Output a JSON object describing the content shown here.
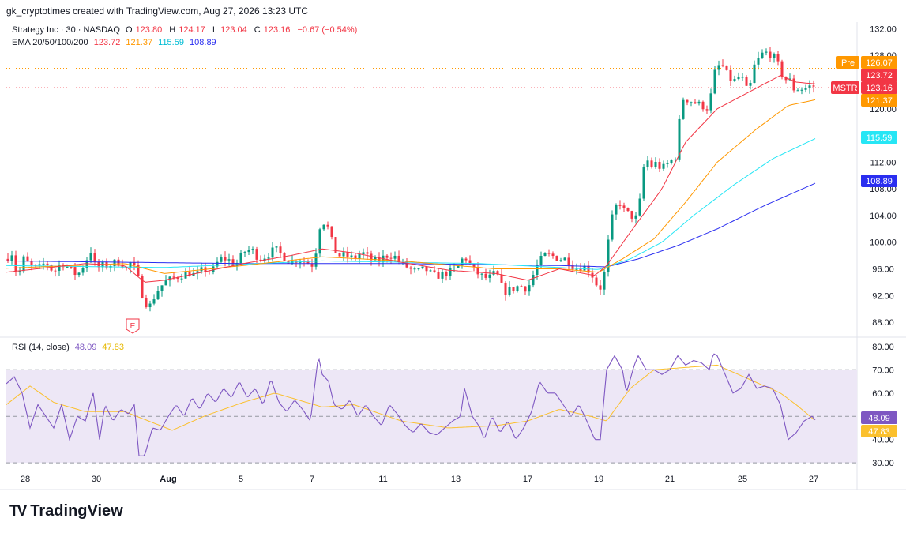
{
  "header": {
    "published_by": "gk_cryptotimes created with TradingView.com, Aug 27, 2026 13:23 UTC"
  },
  "legend_price": {
    "symbol": "Strategy Inc · 30 · NASDAQ",
    "o_label": "O",
    "o_value": "123.80",
    "h_label": "H",
    "h_value": "124.17",
    "l_label": "L",
    "l_value": "123.04",
    "c_label": "C",
    "c_value": "123.16",
    "change": "−0.67 (−0.54%)"
  },
  "legend_ema": {
    "label": "EMA 20/50/100/200",
    "values": [
      "123.72",
      "121.37",
      "115.59",
      "108.89"
    ]
  },
  "legend_rsi": {
    "label": "RSI (14, close)",
    "values": [
      "48.09",
      "47.83"
    ]
  },
  "earnings_marker": "E",
  "brand": {
    "name": "TradingView",
    "logo_glyph": "TV"
  },
  "colors": {
    "up": "#089981",
    "down": "#f23645",
    "ema20": "#f23645",
    "ema50": "#ff9800",
    "ema100": "#26e6f5",
    "ema200": "#2a2ef0",
    "rsi": "#7e57c2",
    "rsi_ma": "#fbc02d",
    "rsi_band": "#ede7f6",
    "pre": "#ff9800",
    "mstr": "#f23645"
  },
  "chart_data": [
    {
      "type": "candlestick",
      "title": "Strategy Inc · 30 · NASDAQ",
      "x_ticks": [
        "28",
        "30",
        "Aug",
        "5",
        "7",
        "11",
        "13",
        "17",
        "19",
        "21",
        "25",
        "27"
      ],
      "y_ticks": [
        "132.00",
        "128.00",
        "120.00",
        "116.00",
        "112.00",
        "108.00",
        "104.00",
        "100.00",
        "96.00",
        "92.00",
        "88.00"
      ],
      "ylim": [
        86,
        133
      ],
      "anchors": [
        [
          0,
          97.5
        ],
        [
          8,
          98.5
        ],
        [
          14,
          94.5
        ],
        [
          22,
          97.5
        ],
        [
          30,
          96.5
        ],
        [
          40,
          96
        ],
        [
          50,
          97
        ],
        [
          60,
          95.5
        ],
        [
          70,
          97
        ],
        [
          80,
          96
        ],
        [
          90,
          95
        ],
        [
          100,
          97
        ],
        [
          108,
          99
        ],
        [
          113,
          96
        ],
        [
          122,
          96.5
        ],
        [
          130,
          96.5
        ],
        [
          138,
          97
        ],
        [
          145,
          97
        ],
        [
          152,
          96
        ],
        [
          158,
          97
        ],
        [
          165,
          95.5
        ],
        [
          170,
          93
        ],
        [
          175,
          91
        ],
        [
          182,
          90.5
        ],
        [
          190,
          92.5
        ],
        [
          200,
          94
        ],
        [
          210,
          94.5
        ],
        [
          220,
          95
        ],
        [
          230,
          95.5
        ],
        [
          240,
          95
        ],
        [
          250,
          96
        ],
        [
          260,
          95.5
        ],
        [
          270,
          97.5
        ],
        [
          280,
          97.5
        ],
        [
          290,
          96.5
        ],
        [
          300,
          98.5
        ],
        [
          310,
          99
        ],
        [
          320,
          97.5
        ],
        [
          330,
          98
        ],
        [
          340,
          99
        ],
        [
          350,
          98
        ],
        [
          360,
          97
        ],
        [
          370,
          97.5
        ],
        [
          380,
          97
        ],
        [
          390,
          96.5
        ],
        [
          395,
          102
        ],
        [
          400,
          103
        ],
        [
          405,
          103
        ],
        [
          410,
          101
        ],
        [
          415,
          99
        ],
        [
          420,
          98
        ],
        [
          430,
          98
        ],
        [
          440,
          97.5
        ],
        [
          450,
          98.5
        ],
        [
          460,
          97.5
        ],
        [
          470,
          97
        ],
        [
          480,
          98
        ],
        [
          490,
          98
        ],
        [
          500,
          97
        ],
        [
          510,
          96
        ],
        [
          520,
          95.5
        ],
        [
          530,
          96
        ],
        [
          540,
          95
        ],
        [
          550,
          95
        ],
        [
          560,
          95.5
        ],
        [
          570,
          96
        ],
        [
          580,
          98
        ],
        [
          590,
          96
        ],
        [
          600,
          95
        ],
        [
          610,
          94.5
        ],
        [
          620,
          95.5
        ],
        [
          630,
          92.5
        ],
        [
          640,
          93
        ],
        [
          650,
          93.5
        ],
        [
          660,
          93
        ],
        [
          670,
          96
        ],
        [
          680,
          98
        ],
        [
          690,
          98
        ],
        [
          700,
          97.5
        ],
        [
          710,
          97.5
        ],
        [
          720,
          96
        ],
        [
          730,
          96.5
        ],
        [
          740,
          95.5
        ],
        [
          750,
          93
        ],
        [
          755,
          93.5
        ],
        [
          760,
          98
        ],
        [
          765,
          103
        ],
        [
          770,
          104.5
        ],
        [
          775,
          106.5
        ],
        [
          780,
          105
        ],
        [
          790,
          104
        ],
        [
          800,
          103.5
        ],
        [
          805,
          110
        ],
        [
          810,
          113
        ],
        [
          815,
          111
        ],
        [
          820,
          112
        ],
        [
          830,
          111
        ],
        [
          840,
          112
        ],
        [
          848,
          113
        ],
        [
          852,
          118
        ],
        [
          856,
          121.5
        ],
        [
          860,
          121.5
        ],
        [
          870,
          121
        ],
        [
          880,
          120.5
        ],
        [
          890,
          120
        ],
        [
          895,
          125
        ],
        [
          900,
          126
        ],
        [
          905,
          127
        ],
        [
          910,
          125.5
        ],
        [
          920,
          124
        ],
        [
          930,
          125
        ],
        [
          940,
          122
        ],
        [
          945,
          126
        ],
        [
          950,
          127
        ],
        [
          955,
          128
        ],
        [
          960,
          128.5
        ],
        [
          970,
          128
        ],
        [
          980,
          126
        ],
        [
          985,
          124
        ],
        [
          990,
          125
        ],
        [
          995,
          123
        ],
        [
          1000,
          123
        ],
        [
          1010,
          123
        ],
        [
          1020,
          123.5
        ],
        [
          1025,
          123.2
        ]
      ],
      "ema_anchors": {
        "ema20": [
          [
            0,
            95.5
          ],
          [
            100,
            96.8
          ],
          [
            150,
            96.5
          ],
          [
            175,
            94
          ],
          [
            200,
            94.3
          ],
          [
            300,
            96.8
          ],
          [
            360,
            98
          ],
          [
            400,
            99
          ],
          [
            440,
            98.4
          ],
          [
            500,
            97
          ],
          [
            560,
            95.8
          ],
          [
            620,
            95.3
          ],
          [
            660,
            94.3
          ],
          [
            700,
            96
          ],
          [
            745,
            95
          ],
          [
            760,
            96.5
          ],
          [
            790,
            101.5
          ],
          [
            830,
            108
          ],
          [
            860,
            115
          ],
          [
            900,
            120
          ],
          [
            940,
            122.5
          ],
          [
            980,
            125
          ],
          [
            1000,
            124
          ],
          [
            1025,
            123.72
          ]
        ],
        "ema50": [
          [
            0,
            96.1
          ],
          [
            150,
            96.8
          ],
          [
            200,
            95.3
          ],
          [
            300,
            96.5
          ],
          [
            400,
            97.8
          ],
          [
            500,
            97.2
          ],
          [
            620,
            96
          ],
          [
            700,
            96
          ],
          [
            750,
            95.5
          ],
          [
            780,
            97.5
          ],
          [
            820,
            100.5
          ],
          [
            860,
            106
          ],
          [
            900,
            112
          ],
          [
            950,
            117
          ],
          [
            990,
            120.5
          ],
          [
            1025,
            121.37
          ]
        ],
        "ema100": [
          [
            0,
            96.5
          ],
          [
            200,
            96.2
          ],
          [
            400,
            97.2
          ],
          [
            600,
            96.8
          ],
          [
            750,
            95.9
          ],
          [
            790,
            97.5
          ],
          [
            830,
            100
          ],
          [
            870,
            104
          ],
          [
            920,
            108.5
          ],
          [
            970,
            112.5
          ],
          [
            1025,
            115.59
          ]
        ],
        "ema200": [
          [
            0,
            97.2
          ],
          [
            300,
            96.8
          ],
          [
            500,
            96.8
          ],
          [
            700,
            96.5
          ],
          [
            760,
            96.3
          ],
          [
            800,
            97.5
          ],
          [
            850,
            99.5
          ],
          [
            900,
            102
          ],
          [
            960,
            105.5
          ],
          [
            1025,
            108.89
          ]
        ]
      }
    },
    {
      "type": "line",
      "title": "RSI (14, close)",
      "y_ticks": [
        "80.00",
        "70.00",
        "60.00",
        "50.00",
        "40.00",
        "30.00"
      ],
      "ylim": [
        27,
        83
      ],
      "band": [
        30,
        70
      ],
      "rsi_anchors": [
        [
          0,
          64
        ],
        [
          10,
          67
        ],
        [
          20,
          60
        ],
        [
          30,
          45
        ],
        [
          40,
          55
        ],
        [
          50,
          50
        ],
        [
          60,
          45
        ],
        [
          70,
          55
        ],
        [
          80,
          40
        ],
        [
          90,
          50
        ],
        [
          100,
          48
        ],
        [
          110,
          60
        ],
        [
          118,
          40
        ],
        [
          125,
          55
        ],
        [
          135,
          48
        ],
        [
          145,
          53
        ],
        [
          155,
          51
        ],
        [
          162,
          55
        ],
        [
          168,
          33
        ],
        [
          175,
          33
        ],
        [
          185,
          45
        ],
        [
          195,
          44
        ],
        [
          205,
          50
        ],
        [
          215,
          55
        ],
        [
          225,
          50
        ],
        [
          235,
          58
        ],
        [
          245,
          53
        ],
        [
          255,
          60
        ],
        [
          265,
          56
        ],
        [
          275,
          62
        ],
        [
          285,
          58
        ],
        [
          295,
          65
        ],
        [
          305,
          58
        ],
        [
          315,
          62
        ],
        [
          325,
          55
        ],
        [
          335,
          66
        ],
        [
          345,
          56
        ],
        [
          355,
          52
        ],
        [
          365,
          57
        ],
        [
          375,
          53
        ],
        [
          385,
          48
        ],
        [
          395,
          76
        ],
        [
          400,
          68
        ],
        [
          408,
          65
        ],
        [
          415,
          55
        ],
        [
          425,
          53
        ],
        [
          435,
          57
        ],
        [
          445,
          50
        ],
        [
          455,
          55
        ],
        [
          465,
          50
        ],
        [
          475,
          46
        ],
        [
          485,
          55
        ],
        [
          495,
          51
        ],
        [
          505,
          46
        ],
        [
          515,
          43
        ],
        [
          525,
          47
        ],
        [
          535,
          43
        ],
        [
          545,
          42
        ],
        [
          555,
          45
        ],
        [
          565,
          48
        ],
        [
          575,
          50
        ],
        [
          580,
          62
        ],
        [
          590,
          50
        ],
        [
          600,
          45
        ],
        [
          605,
          40
        ],
        [
          615,
          50
        ],
        [
          625,
          43
        ],
        [
          635,
          48
        ],
        [
          645,
          40
        ],
        [
          655,
          45
        ],
        [
          665,
          52
        ],
        [
          675,
          65
        ],
        [
          685,
          60
        ],
        [
          695,
          60
        ],
        [
          705,
          55
        ],
        [
          715,
          50
        ],
        [
          725,
          55
        ],
        [
          735,
          48
        ],
        [
          745,
          40
        ],
        [
          752,
          40
        ],
        [
          760,
          70
        ],
        [
          770,
          76
        ],
        [
          780,
          70
        ],
        [
          785,
          60
        ],
        [
          795,
          72
        ],
        [
          800,
          76
        ],
        [
          810,
          70
        ],
        [
          820,
          70
        ],
        [
          830,
          68
        ],
        [
          840,
          70
        ],
        [
          850,
          76
        ],
        [
          860,
          72
        ],
        [
          870,
          74
        ],
        [
          880,
          73
        ],
        [
          890,
          70
        ],
        [
          895,
          77
        ],
        [
          900,
          76
        ],
        [
          910,
          68
        ],
        [
          920,
          60
        ],
        [
          930,
          62
        ],
        [
          940,
          68
        ],
        [
          950,
          62
        ],
        [
          960,
          63
        ],
        [
          970,
          62
        ],
        [
          980,
          55
        ],
        [
          990,
          40
        ],
        [
          1000,
          43
        ],
        [
          1010,
          48
        ],
        [
          1020,
          50
        ],
        [
          1025,
          48.09
        ]
      ],
      "ma_anchors": [
        [
          0,
          55
        ],
        [
          30,
          63
        ],
        [
          60,
          56
        ],
        [
          100,
          52
        ],
        [
          150,
          52
        ],
        [
          180,
          48
        ],
        [
          210,
          44
        ],
        [
          250,
          50
        ],
        [
          300,
          56
        ],
        [
          340,
          60
        ],
        [
          380,
          56
        ],
        [
          400,
          54
        ],
        [
          440,
          55
        ],
        [
          500,
          48
        ],
        [
          560,
          45
        ],
        [
          620,
          46
        ],
        [
          660,
          48
        ],
        [
          700,
          53
        ],
        [
          740,
          50
        ],
        [
          760,
          48
        ],
        [
          790,
          62
        ],
        [
          820,
          70
        ],
        [
          860,
          71
        ],
        [
          900,
          72
        ],
        [
          940,
          66
        ],
        [
          980,
          60
        ],
        [
          1000,
          55
        ],
        [
          1025,
          47.83
        ]
      ]
    }
  ],
  "price_tags": [
    {
      "label": "Pre",
      "value": "126.07"
    },
    {
      "label": "",
      "value": "123.72"
    },
    {
      "label": "MSTR",
      "value": "123.16"
    },
    {
      "label": "",
      "value": "121.37"
    },
    {
      "label": "",
      "value": "115.59"
    },
    {
      "label": "",
      "value": "108.89"
    }
  ],
  "rsi_tags": [
    {
      "value": "48.09"
    },
    {
      "value": "47.83"
    }
  ]
}
